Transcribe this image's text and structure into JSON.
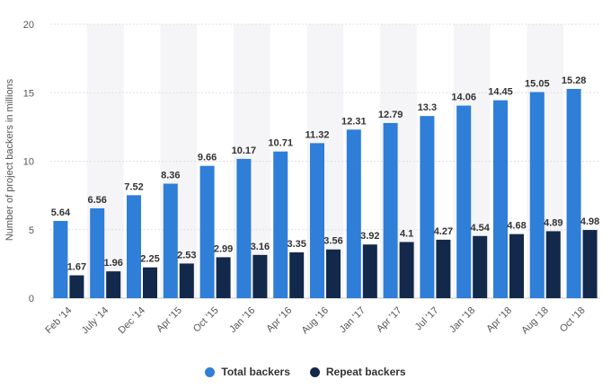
{
  "chart_data": {
    "type": "bar",
    "ylabel": "Number of project backers in millions",
    "xlabel": "",
    "ylim": [
      0,
      20
    ],
    "yticks": [
      0,
      5,
      10,
      15,
      20
    ],
    "grid": true,
    "legend_position": "bottom",
    "categories": [
      "Feb '14",
      "July '14",
      "Dec '14",
      "Apr '15",
      "Oct '15",
      "Jan '16",
      "Apr '16",
      "Aug '16",
      "Jan '17",
      "Apr '17",
      "Jul '17",
      "Jan '18",
      "Apr '18",
      "Aug '18",
      "Oct '18"
    ],
    "series": [
      {
        "name": "Total backers",
        "color": "#2f7ed8",
        "values": [
          5.64,
          6.56,
          7.52,
          8.36,
          9.66,
          10.17,
          10.71,
          11.32,
          12.31,
          12.79,
          13.3,
          14.06,
          14.45,
          15.05,
          15.28
        ],
        "labels": [
          "5.64",
          "6.56",
          "7.52",
          "8.36",
          "9.66",
          "10.17",
          "10.71",
          "11.32",
          "12.31",
          "12.79",
          "13.3",
          "14.06",
          "14.45",
          "15.05",
          "15.28"
        ]
      },
      {
        "name": "Repeat backers",
        "color": "#13294b",
        "values": [
          1.67,
          1.96,
          2.25,
          2.53,
          2.99,
          3.16,
          3.35,
          3.56,
          3.92,
          4.1,
          4.27,
          4.54,
          4.68,
          4.89,
          4.98
        ],
        "labels": [
          "1.67",
          "1.96",
          "2.25",
          "2.53",
          "2.99",
          "3.16",
          "3.35",
          "3.56",
          "3.92",
          "4.1",
          "4.27",
          "4.54",
          "4.68",
          "4.89",
          "4.98"
        ]
      }
    ]
  }
}
